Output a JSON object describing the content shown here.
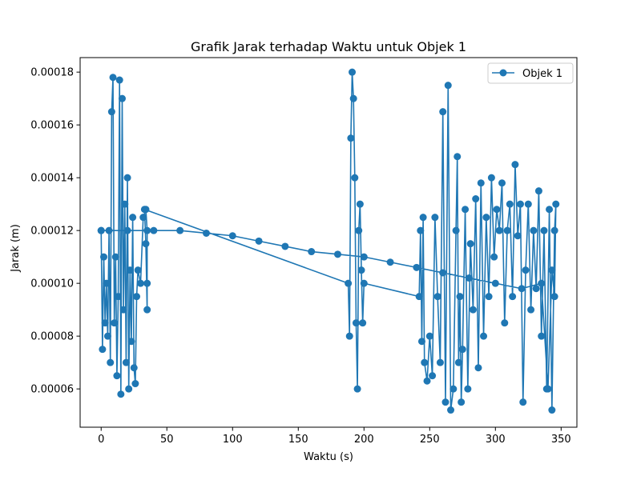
{
  "chart_data": {
    "type": "line",
    "title": "Grafik Jarak terhadap Waktu untuk Objek 1",
    "xlabel": "Waktu (s)",
    "ylabel": "Jarak (m)",
    "xlim": [
      -16,
      362
    ],
    "ylim": [
      4.55e-05,
      0.0001855
    ],
    "xticks": [
      0,
      50,
      100,
      150,
      200,
      250,
      300,
      350
    ],
    "xtick_labels": [
      "0",
      "50",
      "100",
      "150",
      "200",
      "250",
      "300",
      "350"
    ],
    "yticks": [
      6e-05,
      8e-05,
      0.0001,
      0.00012,
      0.00014,
      0.00016,
      0.00018
    ],
    "ytick_labels": [
      "0.00006",
      "0.00008",
      "0.00010",
      "0.00012",
      "0.00014",
      "0.00016",
      "0.00018"
    ],
    "grid": false,
    "legend_position": "top-right",
    "color": "#1f77b4",
    "marker": "circle",
    "series": [
      {
        "name": "Objek 1",
        "x": [
          0,
          1,
          2,
          3,
          4,
          5,
          6,
          7,
          8,
          9,
          10,
          11,
          12,
          13,
          14,
          15,
          16,
          17,
          18,
          19,
          20,
          21,
          22,
          23,
          24,
          25,
          26,
          27,
          28,
          30,
          32,
          34,
          35,
          35,
          35,
          34,
          33,
          188,
          189,
          190,
          191,
          192,
          193,
          194,
          195,
          196,
          197,
          198,
          199,
          200,
          242,
          243,
          244,
          245,
          246,
          248,
          250,
          252,
          254,
          256,
          258,
          260,
          262,
          264,
          266,
          268,
          270,
          271,
          272,
          273,
          274,
          275,
          277,
          279,
          281,
          283,
          285,
          287,
          289,
          291,
          293,
          295,
          297,
          299,
          301,
          303,
          305,
          307,
          309,
          311,
          313,
          315,
          317,
          319,
          321,
          323,
          325,
          327,
          329,
          331,
          333,
          335,
          337,
          339,
          341,
          343,
          345,
          346,
          345,
          343,
          340,
          335,
          320,
          300,
          280,
          260,
          240,
          220,
          200,
          180,
          160,
          140,
          120,
          100,
          80,
          60,
          40,
          20,
          0
        ],
        "y": [
          0.00012,
          7.5e-05,
          0.00011,
          8.5e-05,
          0.0001,
          8e-05,
          0.00012,
          7e-05,
          0.000165,
          0.000178,
          8.5e-05,
          0.00011,
          6.5e-05,
          9.5e-05,
          0.000177,
          5.8e-05,
          0.00017,
          9e-05,
          0.00013,
          7e-05,
          0.00014,
          6e-05,
          0.000105,
          7.8e-05,
          0.000125,
          6.8e-05,
          6.2e-05,
          9.5e-05,
          0.000105,
          0.0001,
          0.000125,
          0.000128,
          0.00012,
          0.0001,
          9e-05,
          0.000115,
          0.000128,
          0.0001,
          8e-05,
          0.000155,
          0.00018,
          0.00017,
          0.00014,
          8.5e-05,
          6e-05,
          0.00012,
          0.00013,
          0.000105,
          8.5e-05,
          0.0001,
          9.5e-05,
          0.00012,
          7.8e-05,
          0.000125,
          7e-05,
          6.3e-05,
          8e-05,
          6.5e-05,
          0.000125,
          9.5e-05,
          7e-05,
          0.000165,
          5.5e-05,
          0.000175,
          5.2e-05,
          6e-05,
          0.00012,
          0.000148,
          7e-05,
          9.5e-05,
          5.5e-05,
          7.5e-05,
          0.000128,
          6e-05,
          0.000115,
          9e-05,
          0.000132,
          6.8e-05,
          0.000138,
          8e-05,
          0.000125,
          9.5e-05,
          0.00014,
          0.00011,
          0.000128,
          0.00012,
          0.000138,
          8.5e-05,
          0.00012,
          0.00013,
          9.5e-05,
          0.000145,
          0.000118,
          0.00013,
          5.5e-05,
          0.000105,
          0.00013,
          9e-05,
          0.00012,
          9.8e-05,
          0.000135,
          8e-05,
          0.00012,
          6e-05,
          0.000128,
          5.2e-05,
          0.00012,
          0.00013,
          9.5e-05,
          0.000105,
          6e-05,
          0.0001,
          9.8e-05,
          0.0001,
          0.000102,
          0.000104,
          0.000106,
          0.000108,
          0.00011,
          0.000111,
          0.000112,
          0.000114,
          0.000116,
          0.000118,
          0.000119,
          0.00012,
          0.00012,
          0.00012,
          0.00012
        ]
      }
    ]
  }
}
